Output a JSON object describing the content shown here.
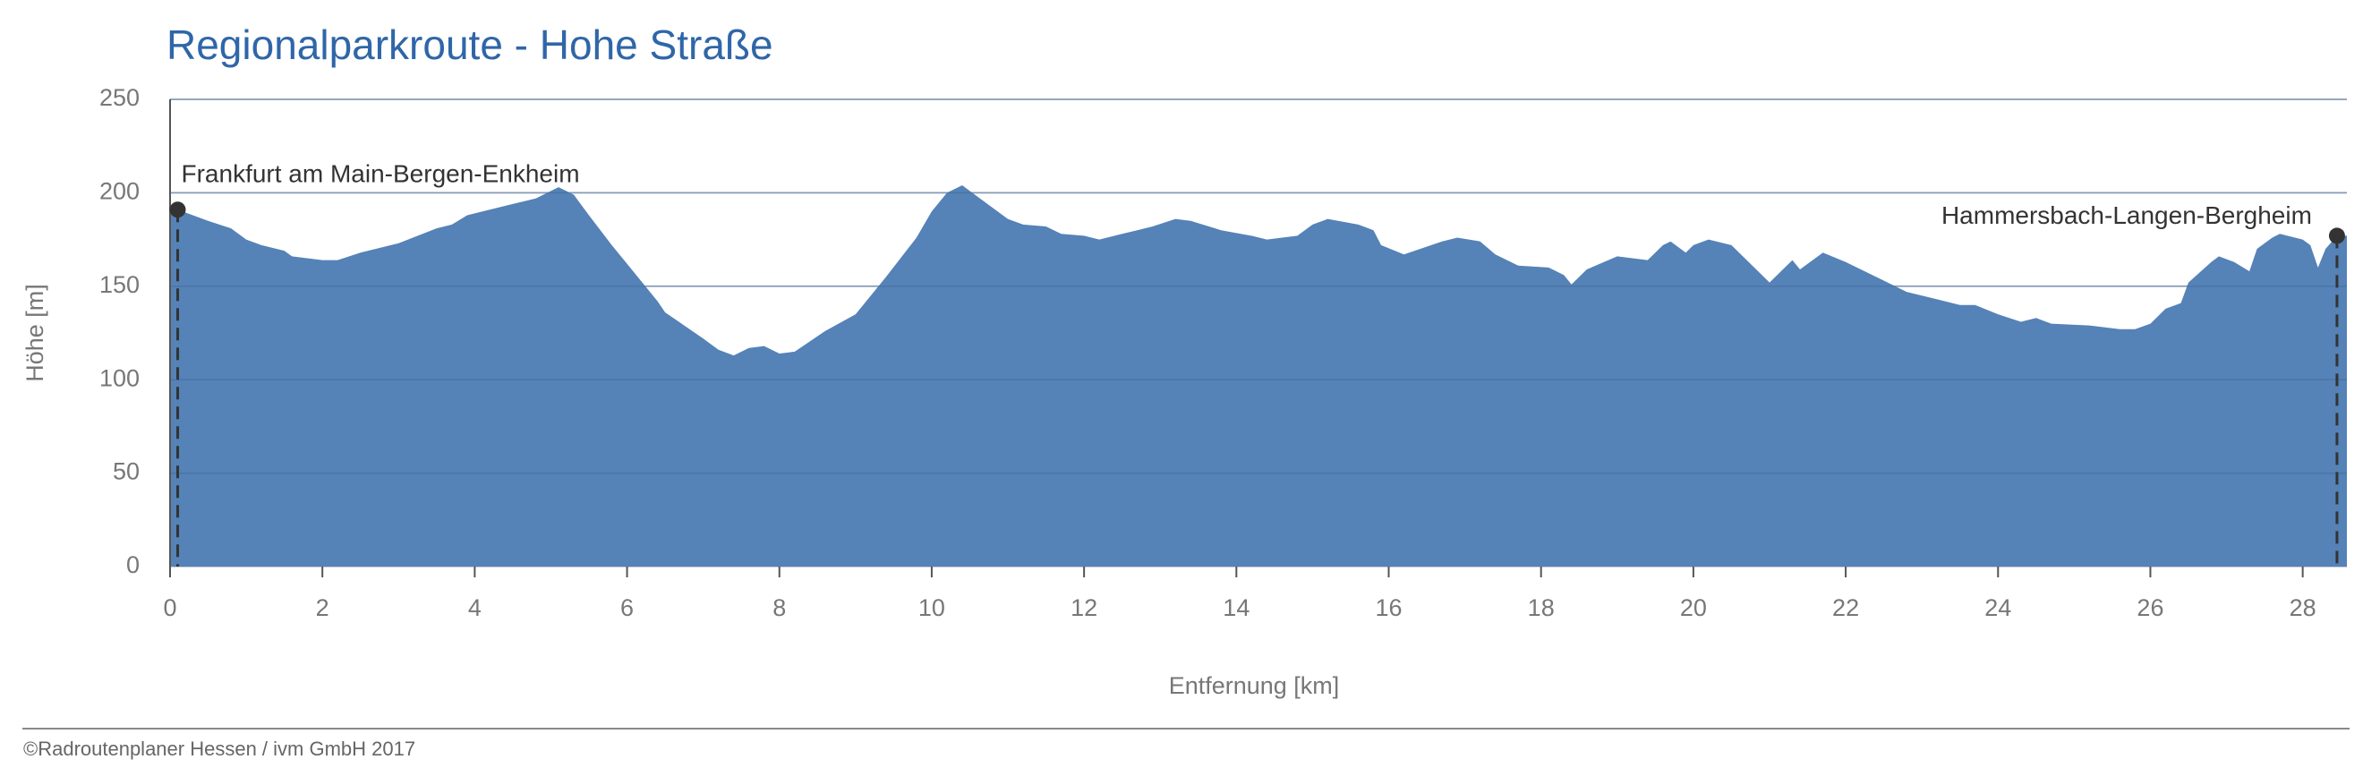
{
  "chart_data": {
    "type": "area",
    "title": "Regionalparkroute - Hohe Straße",
    "x_label": "Entfernung [km]",
    "y_label": "Höhe [m]",
    "color": "#4f7eb5",
    "grid": true,
    "xlim": [
      0,
      28.58
    ],
    "ylim": [
      0,
      250
    ],
    "xticks": [
      0,
      2,
      4,
      6,
      8,
      10,
      12,
      14,
      16,
      18,
      20,
      22,
      24,
      26,
      28
    ],
    "yticks": [
      0,
      50,
      100,
      150,
      200,
      250
    ],
    "x": [
      0,
      0.1,
      0.5,
      0.8,
      1.0,
      1.2,
      1.5,
      1.6,
      2.0,
      2.2,
      2.5,
      3.0,
      3.5,
      3.7,
      3.9,
      4.1,
      4.5,
      4.8,
      5.1,
      5.3,
      5.5,
      5.8,
      6.0,
      6.4,
      6.5,
      7.0,
      7.2,
      7.4,
      7.6,
      7.8,
      8.0,
      8.2,
      8.6,
      9.0,
      9.4,
      9.8,
      10.0,
      10.2,
      10.4,
      10.6,
      10.8,
      11.0,
      11.2,
      11.5,
      11.7,
      12.0,
      12.2,
      12.5,
      12.9,
      13.2,
      13.4,
      13.8,
      14.2,
      14.4,
      14.8,
      15.0,
      15.2,
      15.6,
      15.8,
      15.9,
      16.2,
      16.7,
      16.9,
      17.2,
      17.4,
      17.7,
      18.1,
      18.3,
      18.4,
      18.6,
      19.0,
      19.4,
      19.6,
      19.7,
      19.9,
      20.0,
      20.2,
      20.5,
      21.0,
      21.3,
      21.4,
      21.7,
      22.0,
      22.5,
      22.8,
      23.2,
      23.5,
      23.7,
      24.0,
      24.3,
      24.5,
      24.7,
      25.2,
      25.6,
      25.8,
      26.0,
      26.2,
      26.4,
      26.5,
      26.8,
      26.9,
      27.1,
      27.3,
      27.4,
      27.6,
      27.7,
      27.8,
      28.0,
      28.1,
      28.2,
      28.3,
      28.45,
      28.58
    ],
    "values": [
      190,
      191,
      185,
      181,
      175,
      172,
      169,
      166,
      164,
      164,
      168,
      173,
      181,
      183,
      188,
      190,
      194,
      197,
      203,
      199,
      188,
      172,
      162,
      142,
      136,
      122,
      116,
      113,
      117,
      118,
      114,
      115,
      126,
      135,
      155,
      176,
      190,
      200,
      204,
      198,
      192,
      186,
      183,
      182,
      178,
      177,
      175,
      178,
      182,
      186,
      185,
      180,
      177,
      175,
      177,
      183,
      186,
      183,
      180,
      172,
      167,
      174,
      176,
      174,
      167,
      161,
      160,
      156,
      151,
      159,
      166,
      164,
      172,
      174,
      168,
      172,
      175,
      172,
      152,
      164,
      159,
      168,
      163,
      153,
      147,
      143,
      140,
      140,
      135,
      131,
      133,
      130,
      129,
      127,
      127,
      130,
      138,
      141,
      152,
      163,
      166,
      163,
      158,
      170,
      176,
      178,
      177,
      175,
      172,
      160,
      170,
      177,
      177
    ],
    "markers": [
      {
        "label": "Frankfurt am Main-Bergen-Enkheim",
        "x": 0.1,
        "y": 191
      },
      {
        "label": "Hammersbach-Langen-Bergheim",
        "x": 28.45,
        "y": 177
      }
    ]
  },
  "footer": "©Radroutenplaner Hessen / ivm GmbH 2017"
}
